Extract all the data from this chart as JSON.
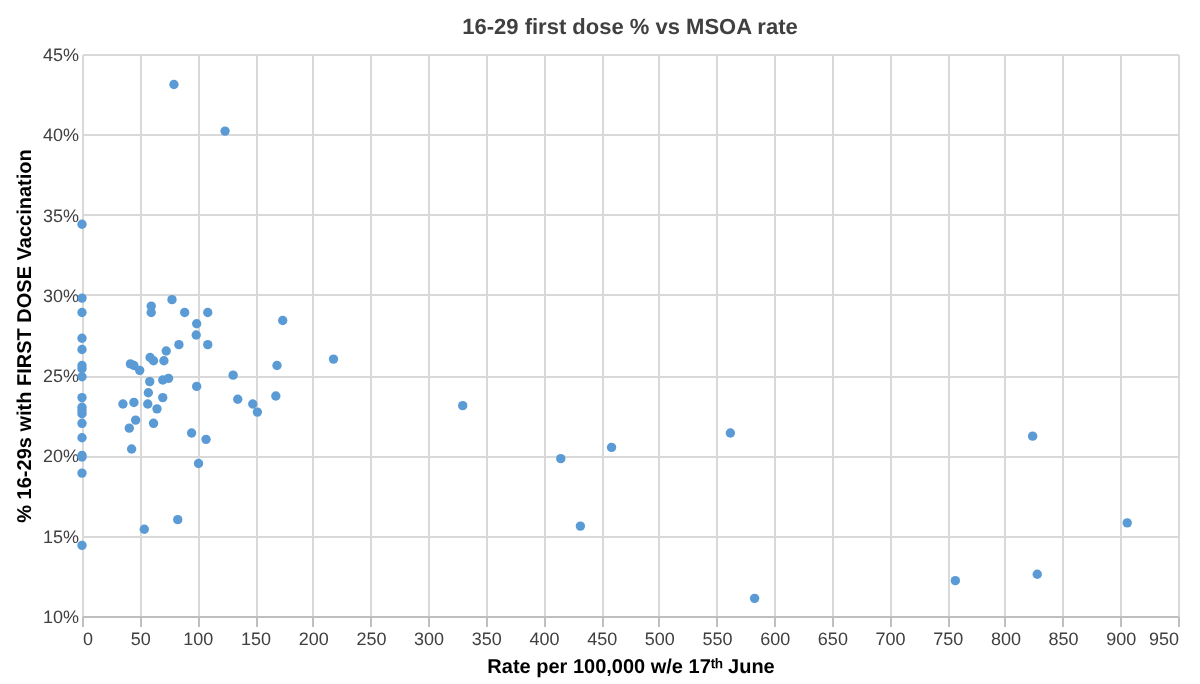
{
  "chart_data": {
    "type": "scatter",
    "title": "16-29 first dose % vs MSOA rate",
    "xlabel": "Rate per 100,000 w/e 17ᵗʰ June",
    "ylabel": "% 16-29s with FIRST DOSE Vaccination",
    "x": [
      0,
      0,
      0,
      0,
      0,
      0,
      0,
      0,
      0,
      0,
      0,
      0,
      0,
      0,
      0,
      0,
      0,
      0,
      79.7,
      124,
      35.5,
      41,
      42,
      45,
      45,
      43,
      46.5,
      50,
      54,
      57.5,
      57,
      59,
      58.7,
      60,
      60,
      62,
      62,
      65,
      70,
      71,
      70,
      73,
      75,
      78,
      84,
      83,
      89,
      95,
      99,
      99.4,
      99.4,
      101,
      107.5,
      109,
      109,
      131,
      135,
      148,
      152,
      169,
      168,
      174,
      218,
      330,
      415,
      459,
      432,
      562,
      583,
      757,
      824,
      828,
      906
    ],
    "series": [
      {
        "color": "#5b9bd5",
        "values": [
          34.4,
          29.8,
          28.9,
          27.3,
          26.6,
          25.6,
          25.4,
          24.9,
          23.6,
          23.0,
          22.8,
          22.6,
          22.0,
          21.1,
          20.0,
          19.9,
          18.9,
          14.4,
          43.1,
          40.2,
          23.2,
          21.7,
          25.7,
          25.6,
          23.3,
          20.4,
          22.2,
          25.3,
          15.4,
          23.9,
          23.2,
          26.1,
          24.6,
          29.3,
          28.9,
          25.9,
          22.0,
          22.9,
          24.7,
          25.9,
          23.6,
          26.5,
          24.8,
          29.7,
          26.9,
          16.0,
          28.9,
          21.4,
          27.5,
          28.2,
          24.3,
          19.5,
          21.0,
          26.9,
          28.9,
          25.0,
          23.5,
          23.2,
          22.7,
          25.6,
          23.7,
          28.4,
          26.0,
          23.1,
          19.8,
          20.5,
          15.6,
          21.4,
          11.1,
          12.2,
          21.2,
          12.6,
          15.8
        ]
      }
    ],
    "xlim": [
      0,
      950
    ],
    "xticks": [
      0,
      50,
      100,
      150,
      200,
      250,
      300,
      350,
      400,
      450,
      500,
      550,
      600,
      650,
      700,
      750,
      800,
      850,
      900,
      950
    ],
    "ylim": [
      10,
      45
    ],
    "yticks": [
      {
        "value": 10,
        "label": "10%"
      },
      {
        "value": 15,
        "label": "15%"
      },
      {
        "value": 20,
        "label": "20%"
      },
      {
        "value": 25,
        "label": "25%"
      },
      {
        "value": 30,
        "label": "30%"
      },
      {
        "value": 35,
        "label": "35%"
      },
      {
        "value": 40,
        "label": "40%"
      },
      {
        "value": 45,
        "label": "45%"
      }
    ],
    "grid": true,
    "marker": "circle"
  }
}
